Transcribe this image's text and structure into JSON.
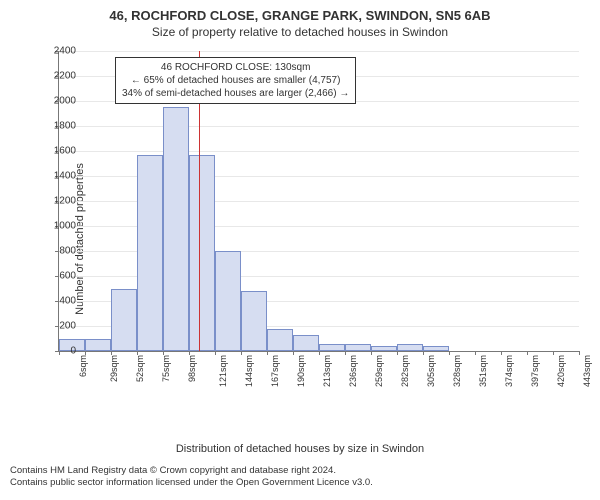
{
  "title_line1": "46, ROCHFORD CLOSE, GRANGE PARK, SWINDON, SN5 6AB",
  "title_line2": "Size of property relative to detached houses in Swindon",
  "ylabel": "Number of detached properties",
  "xlabel": "Distribution of detached houses by size in Swindon",
  "footer_line1": "Contains HM Land Registry data © Crown copyright and database right 2024.",
  "footer_line2": "Contains public sector information licensed under the Open Government Licence v3.0.",
  "annotation": {
    "line1": "46 ROCHFORD CLOSE: 130sqm",
    "line2": "← 65% of detached houses are smaller (4,757)",
    "line3": "34% of semi-detached houses are larger (2,466) →"
  },
  "chart": {
    "type": "histogram",
    "background_color": "#ffffff",
    "grid_color": "#e8e8e8",
    "axis_color": "#777777",
    "bar_fill": "#d6ddf1",
    "bar_border": "#7a8fc9",
    "ref_color": "#cc3333",
    "ref_value": 130,
    "x_start": 6,
    "x_step": 23,
    "x_count": 21,
    "x_unit": "sqm",
    "ylim": [
      0,
      2400
    ],
    "ytick_step": 200,
    "values": [
      100,
      100,
      500,
      1570,
      1950,
      1570,
      800,
      480,
      180,
      130,
      60,
      60,
      40,
      60,
      40,
      0,
      0,
      0,
      0,
      0
    ],
    "title_fontsize": 13,
    "label_fontsize": 11,
    "tick_fontsize": 10
  }
}
